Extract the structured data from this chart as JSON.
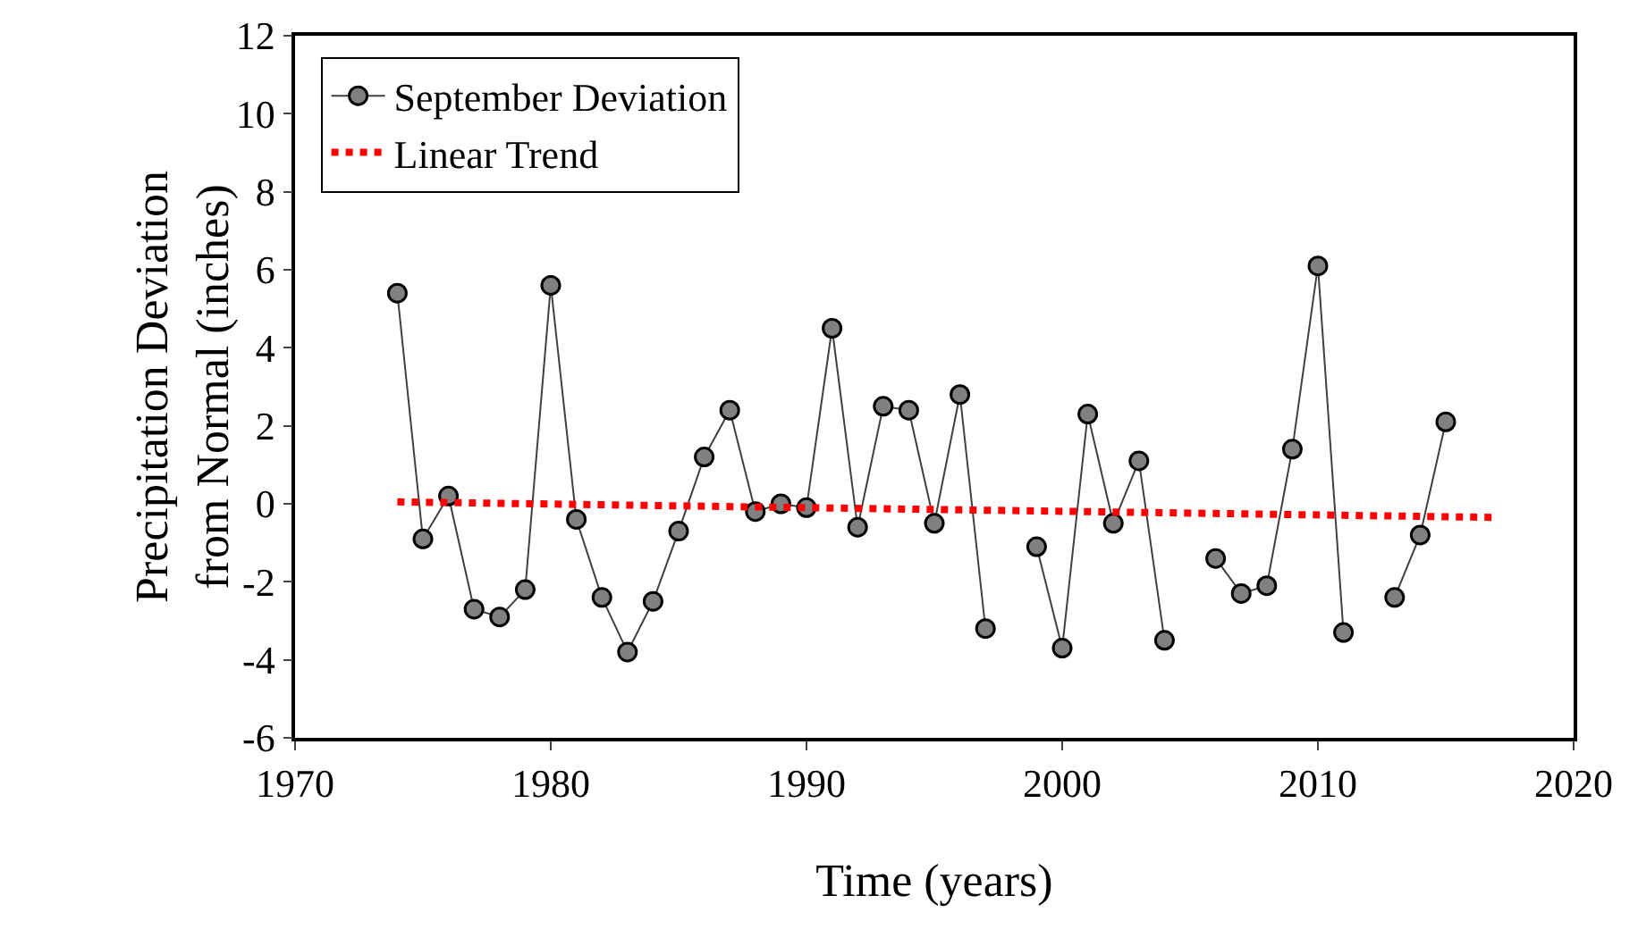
{
  "chart_data": {
    "type": "line",
    "xlabel": "Time (years)",
    "ylabel": "Precipitation Deviation from Normal (inches)",
    "xlim": [
      1970,
      2020
    ],
    "xticks": [
      1970,
      1980,
      1990,
      2000,
      2010,
      2020
    ],
    "ylim": [
      -6,
      12
    ],
    "yticks": [
      -6,
      -4,
      -2,
      0,
      2,
      4,
      6,
      8,
      10,
      12
    ],
    "legend": "top left",
    "series": [
      {
        "name": "September Deviation",
        "color": "#808080",
        "marker": "circle",
        "line_style": "solid",
        "x": [
          1974,
          1975,
          1976,
          1977,
          1978,
          1979,
          1980,
          1981,
          1982,
          1983,
          1984,
          1985,
          1986,
          1987,
          1988,
          1989,
          1990,
          1991,
          1992,
          1993,
          1994,
          1995,
          1996,
          1997,
          1998,
          1999,
          2000,
          2001,
          2002,
          2003,
          2004,
          2005,
          2006,
          2007,
          2008,
          2009,
          2010,
          2011,
          2012,
          2013,
          2014,
          2015
        ],
        "values": [
          5.4,
          -0.9,
          0.2,
          -2.7,
          -2.9,
          -2.2,
          5.6,
          -0.4,
          -2.4,
          -3.8,
          -2.5,
          -0.7,
          1.2,
          2.4,
          -0.2,
          0.0,
          -0.1,
          4.5,
          -0.6,
          2.5,
          2.4,
          -0.5,
          2.8,
          -3.2,
          null,
          -1.1,
          -3.7,
          2.3,
          -0.5,
          1.1,
          -3.5,
          null,
          -1.4,
          -2.3,
          -2.1,
          1.4,
          6.1,
          -3.3,
          null,
          -2.4,
          -0.8,
          2.1
        ]
      },
      {
        "name": "Linear Trend",
        "color": "#ff0000",
        "marker": "none",
        "line_style": "dotted",
        "x": [
          1974,
          2017
        ],
        "values": [
          0.05,
          -0.35
        ]
      }
    ]
  }
}
